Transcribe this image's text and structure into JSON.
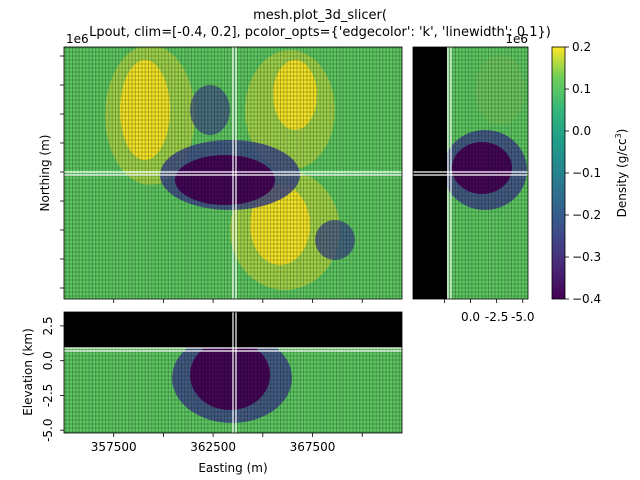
{
  "title_line1": "mesh.plot_3d_slicer(",
  "title_line2": "Lpout, clim=[-0.4, 0.2], pcolor_opts={'edgecolor': 'k', 'linewidth': 0.1})",
  "chart_data": {
    "type": "heatmap",
    "clim": [
      -0.4,
      0.2
    ],
    "colormap": "viridis",
    "slice_position": {
      "easting": 363300,
      "northing": 6066700,
      "elevation": -0.3
    },
    "plan_view": {
      "xlabel": "Easting (m)",
      "ylabel": "Northing (m)",
      "offset_text": "1e6",
      "xlim": [
        355000,
        372000
      ],
      "ylim": [
        6059000,
        6075000
      ],
      "ticks_labeled": false
    },
    "section_view": {
      "xlabel": "Easting (m)",
      "ylabel": "Elevation (km)",
      "xlim": [
        355000,
        372000
      ],
      "ylim": [
        -5.2,
        3.5
      ],
      "xticks": [
        "357500",
        "362500",
        "367500"
      ],
      "yticks": [
        "2.5",
        "0.0",
        "-2.5",
        "-5.0"
      ]
    },
    "side_view": {
      "offset_text": "1e6",
      "xlim": [
        5.5,
        -5.5
      ],
      "xticks": [
        "0.0",
        "-2.5",
        "-5.0"
      ]
    },
    "colorbar": {
      "label": "Density (g/cc$^3$)",
      "label_display": "Density (g/cc",
      "label_sup": "3",
      "label_close": ")",
      "ticks": [
        "0.2",
        "0.1",
        "0.0",
        "−0.1",
        "−0.2",
        "−0.3",
        "−0.4"
      ]
    }
  }
}
